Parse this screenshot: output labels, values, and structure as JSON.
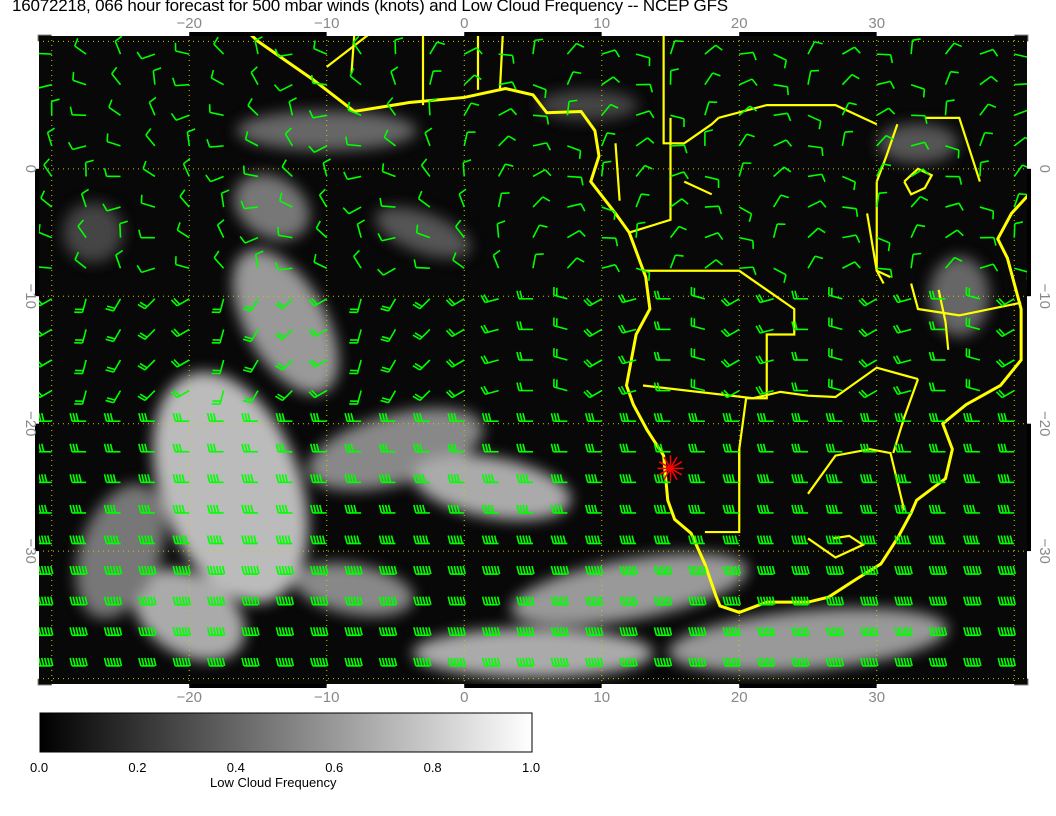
{
  "title": "16072218, 066 hour forecast for 500 mbar winds (knots) and Low Cloud Frequency -- NCEP GFS",
  "map": {
    "lon_range": [
      -31,
      41
    ],
    "lat_range": [
      -40.5,
      10.5
    ],
    "lon_ticks": [
      -20,
      -10,
      0,
      10,
      20,
      30
    ],
    "lat_ticks": [
      0,
      -10,
      -20,
      -30
    ],
    "lon_tick_labels": [
      "−20",
      "−10",
      "0",
      "10",
      "20",
      "30"
    ],
    "lat_tick_labels": [
      "0",
      "−10",
      "−20",
      "−30"
    ],
    "grid": "dotted every 10 degrees",
    "coastline_color": "#ffff00",
    "wind_barb_color": "#00ff00",
    "marker": {
      "symbol": "red-asterisk",
      "lon": 15,
      "lat": -23.5,
      "color": "#ff0000"
    }
  },
  "colorbar": {
    "label": "Low Cloud Frequency",
    "min": 0.0,
    "max": 1.0,
    "tick_labels": [
      "0.0",
      "0.2",
      "0.4",
      "0.6",
      "0.8",
      "1.0"
    ],
    "colormap": "grayscale black-to-white"
  }
}
